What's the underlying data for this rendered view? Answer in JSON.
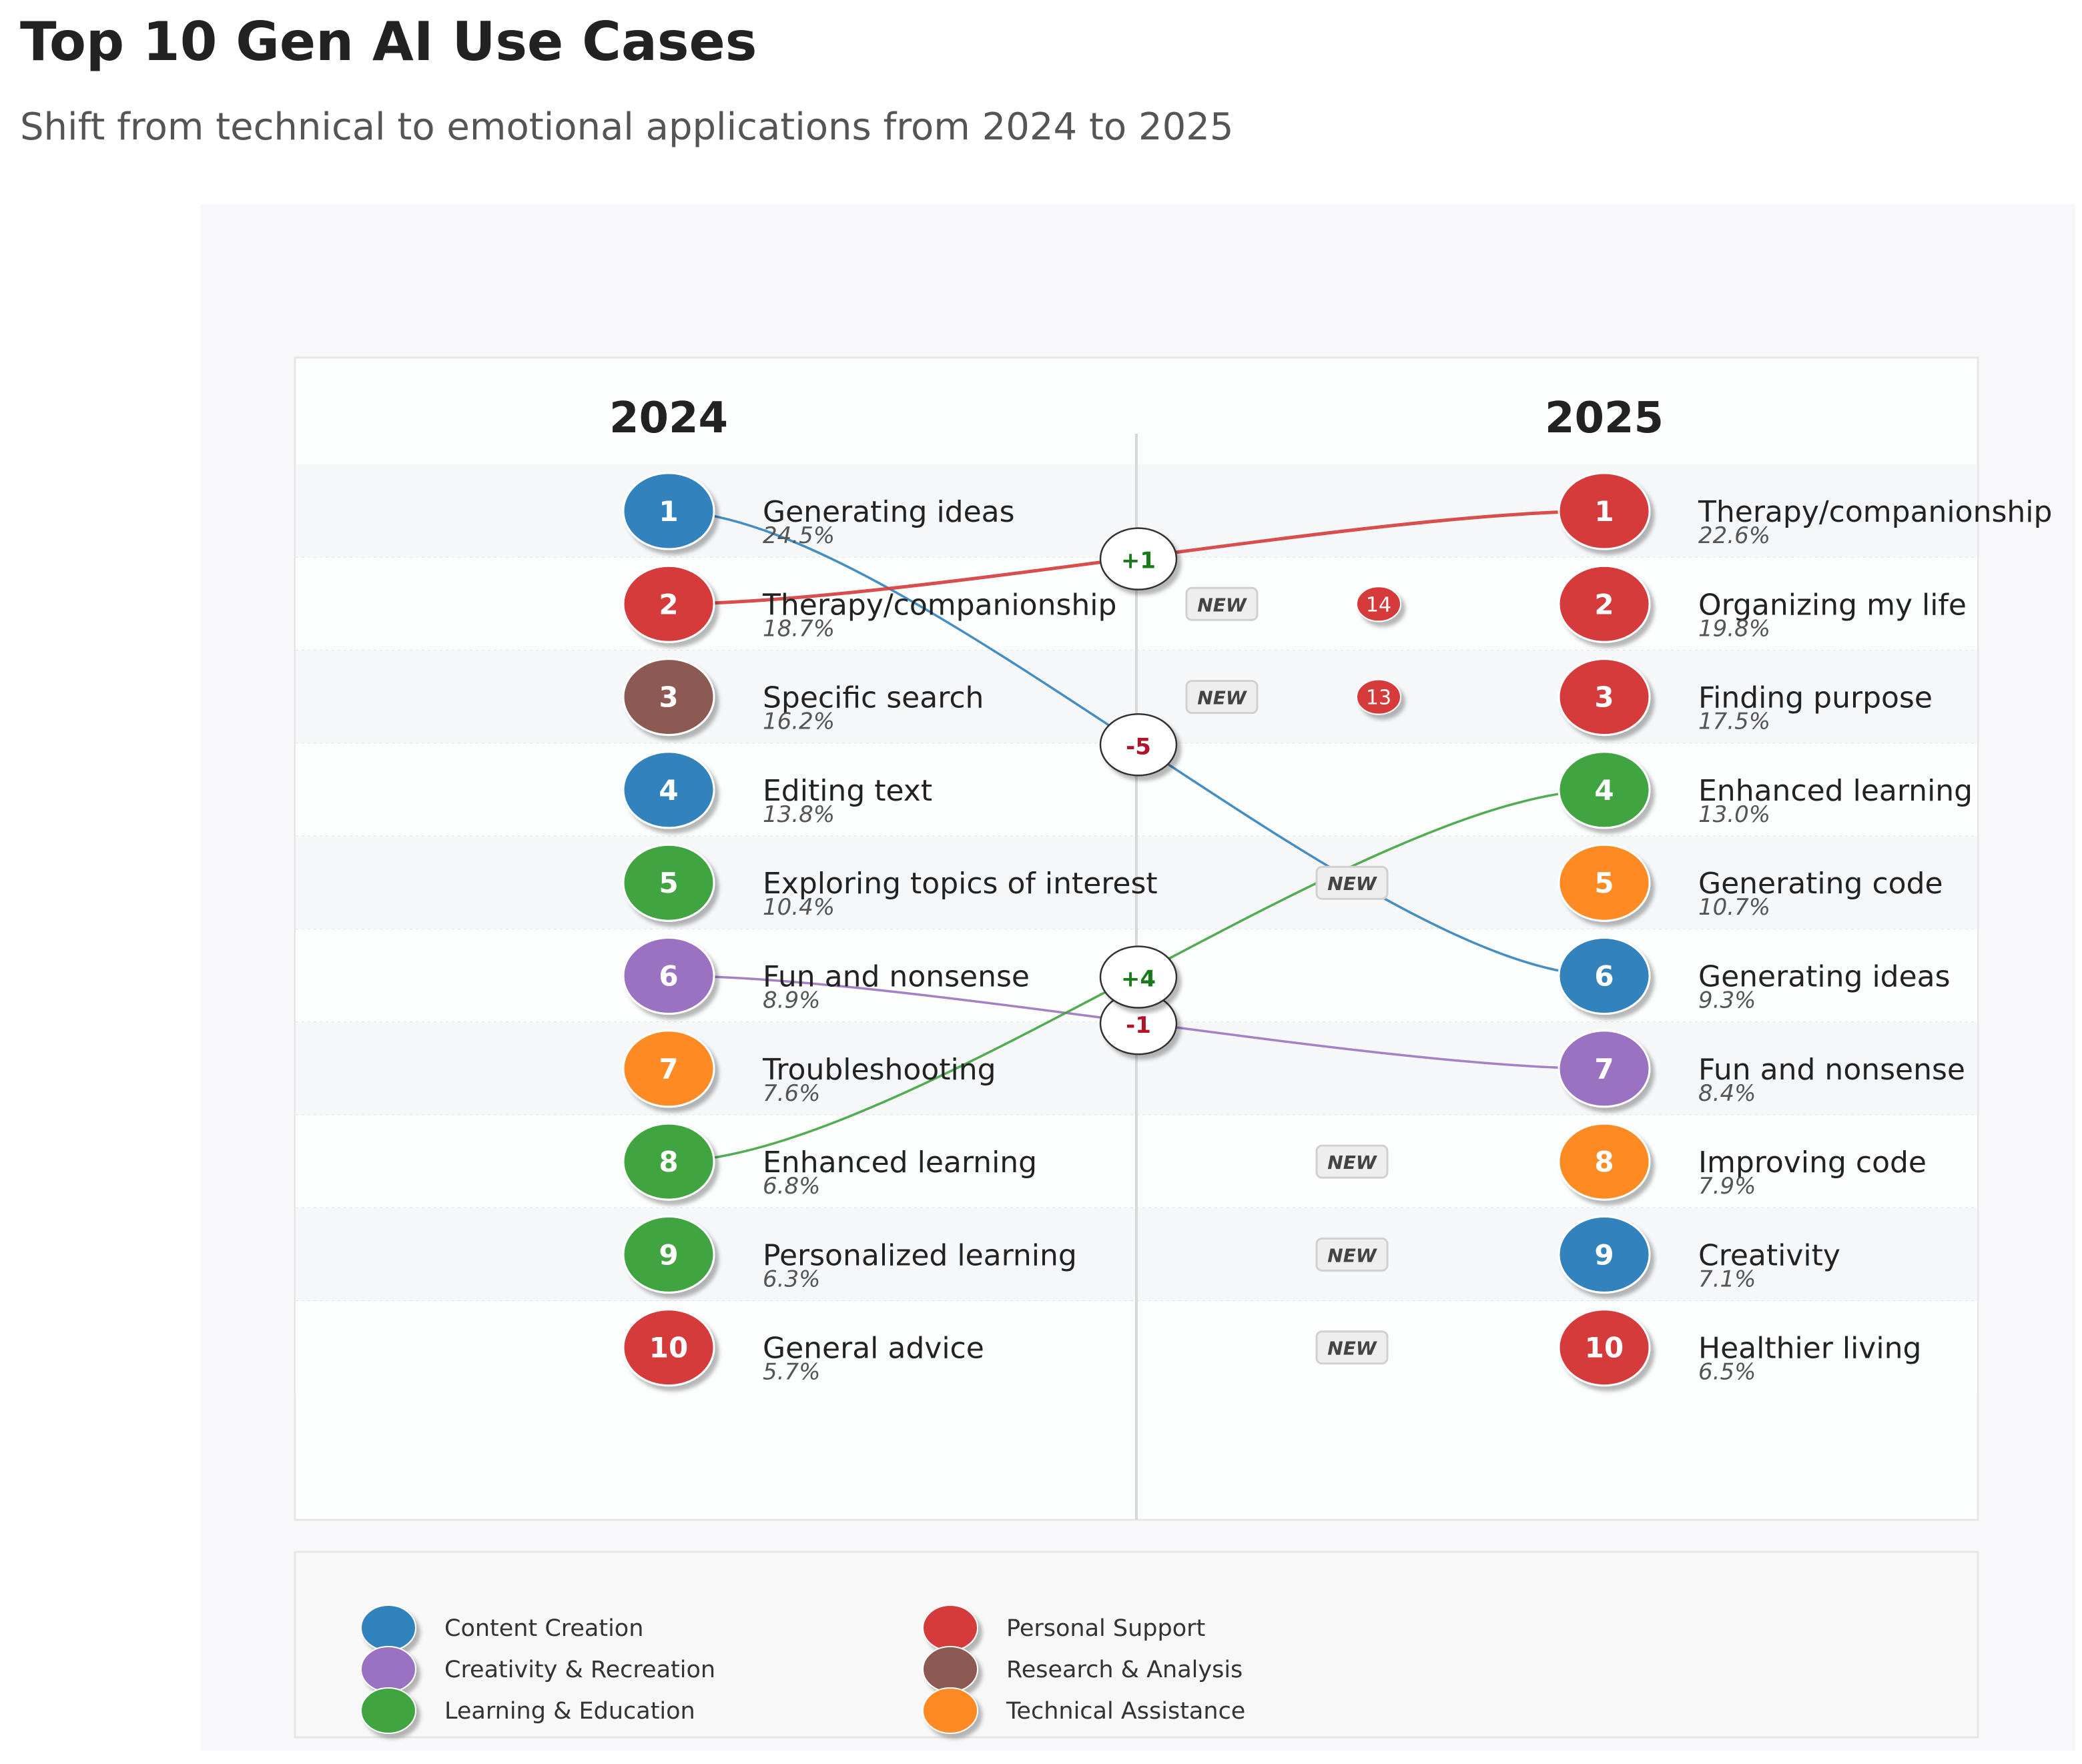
{
  "title": "Top 10 Gen AI Use Cases",
  "subtitle": "Shift from technical to emotional applications from 2024 to 2025",
  "colors": {
    "Content Creation": "#3182bd",
    "Personal Support": "#d63a3a",
    "Creativity & Recreation": "#9b72c1",
    "Research & Analysis": "#8c5a52",
    "Learning & Education": "#3fa43f",
    "Technical Assistance": "#fd8a24"
  },
  "chart_data": {
    "type": "slope",
    "left_label": "2024",
    "right_label": "2025",
    "new_label": "NEW",
    "left": [
      {
        "rank": 1,
        "name": "Generating ideas",
        "pct": "24.5%",
        "category": "Content Creation"
      },
      {
        "rank": 2,
        "name": "Therapy/companionship",
        "pct": "18.7%",
        "category": "Personal Support"
      },
      {
        "rank": 3,
        "name": "Specific search",
        "pct": "16.2%",
        "category": "Research & Analysis"
      },
      {
        "rank": 4,
        "name": "Editing text",
        "pct": "13.8%",
        "category": "Content Creation"
      },
      {
        "rank": 5,
        "name": "Exploring topics of interest",
        "pct": "10.4%",
        "category": "Learning & Education"
      },
      {
        "rank": 6,
        "name": "Fun and nonsense",
        "pct": "8.9%",
        "category": "Creativity & Recreation"
      },
      {
        "rank": 7,
        "name": "Troubleshooting",
        "pct": "7.6%",
        "category": "Technical Assistance"
      },
      {
        "rank": 8,
        "name": "Enhanced learning",
        "pct": "6.8%",
        "category": "Learning & Education"
      },
      {
        "rank": 9,
        "name": "Personalized learning",
        "pct": "6.3%",
        "category": "Learning & Education"
      },
      {
        "rank": 10,
        "name": "General advice",
        "pct": "5.7%",
        "category": "Personal Support"
      }
    ],
    "right": [
      {
        "rank": 1,
        "name": "Therapy/companionship",
        "pct": "22.6%",
        "category": "Personal Support"
      },
      {
        "rank": 2,
        "name": "Organizing my life",
        "pct": "19.8%",
        "category": "Personal Support",
        "new": true,
        "prior_rank": "14"
      },
      {
        "rank": 3,
        "name": "Finding purpose",
        "pct": "17.5%",
        "category": "Personal Support",
        "new": true,
        "prior_rank": "13"
      },
      {
        "rank": 4,
        "name": "Enhanced learning",
        "pct": "13.0%",
        "category": "Learning & Education"
      },
      {
        "rank": 5,
        "name": "Generating code",
        "pct": "10.7%",
        "category": "Technical Assistance",
        "new": true
      },
      {
        "rank": 6,
        "name": "Generating ideas",
        "pct": "9.3%",
        "category": "Content Creation"
      },
      {
        "rank": 7,
        "name": "Fun and nonsense",
        "pct": "8.4%",
        "category": "Creativity & Recreation"
      },
      {
        "rank": 8,
        "name": "Improving code",
        "pct": "7.9%",
        "category": "Technical Assistance",
        "new": true
      },
      {
        "rank": 9,
        "name": "Creativity",
        "pct": "7.1%",
        "category": "Content Creation",
        "new": true
      },
      {
        "rank": 10,
        "name": "Healthier living",
        "pct": "6.5%",
        "category": "Personal Support",
        "new": true
      }
    ],
    "connections": [
      {
        "from_rank": 1,
        "to_rank": 6,
        "change": "-5",
        "category": "Content Creation"
      },
      {
        "from_rank": 2,
        "to_rank": 1,
        "change": "+1",
        "category": "Personal Support"
      },
      {
        "from_rank": 6,
        "to_rank": 7,
        "change": "-1",
        "category": "Creativity & Recreation"
      },
      {
        "from_rank": 8,
        "to_rank": 4,
        "change": "+4",
        "category": "Learning & Education"
      }
    ],
    "legend": [
      "Content Creation",
      "Creativity & Recreation",
      "Learning & Education",
      "Personal Support",
      "Research & Analysis",
      "Technical Assistance"
    ]
  }
}
